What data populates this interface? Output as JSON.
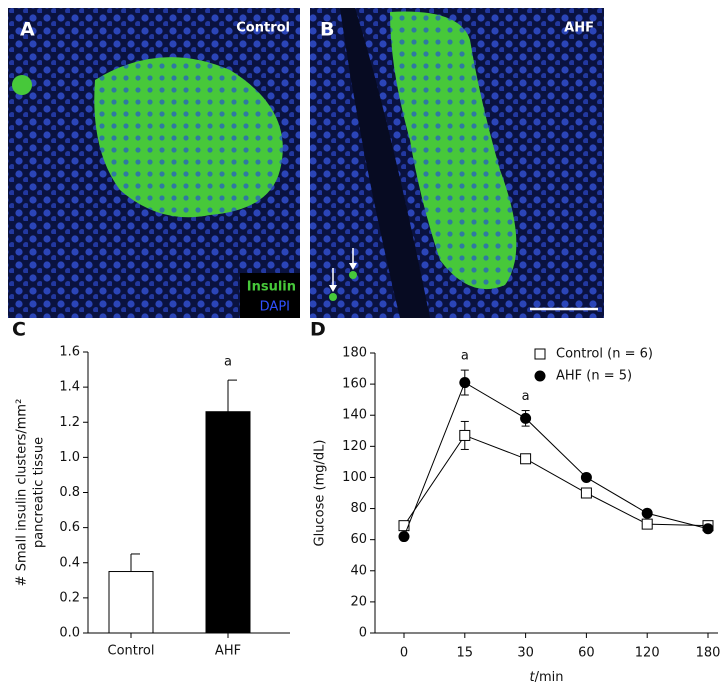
{
  "panels": [
    {
      "label": "A",
      "caption": "Control",
      "legend": [
        "Insulin",
        "DAPI"
      ]
    },
    {
      "label": "B",
      "caption": "AHF"
    }
  ],
  "chart_data": [
    {
      "type": "bar",
      "label": "C",
      "categories": [
        "Control",
        "AHF"
      ],
      "values": [
        0.35,
        1.26
      ],
      "errors": [
        0.1,
        0.18
      ],
      "colors": [
        "#ffffff",
        "#000000"
      ],
      "ylim": [
        0,
        1.6
      ],
      "yticks": [
        {
          "value": 0,
          "label": "0.0"
        },
        0.2,
        0.4,
        0.6,
        0.8,
        {
          "value": 1,
          "label": "1.0"
        },
        1.2,
        1.4,
        1.6
      ],
      "ylabel": [
        "# Small insulin clusters/mm²",
        "pancreatic tissue"
      ],
      "annotations": [
        {
          "category": 1,
          "text": "a"
        }
      ]
    },
    {
      "type": "line",
      "label": "D",
      "categories": [
        "0",
        "15",
        "30",
        "60",
        "120",
        "180"
      ],
      "xlabel": {
        "var": "t",
        "unit": "/min"
      },
      "ylabel": "Glucose (mg/dL)",
      "ylim": [
        0,
        180
      ],
      "yticks": [
        0,
        20,
        40,
        60,
        80,
        100,
        120,
        140,
        160,
        180
      ],
      "series": [
        {
          "name": "Control (n = 6)",
          "marker": "square",
          "color": "#000000",
          "values": [
            69,
            127,
            112,
            90,
            70,
            69
          ],
          "errors": [
            2,
            9,
            3,
            2,
            2,
            2
          ]
        },
        {
          "name": "AHF (n = 5)",
          "marker": "circle",
          "color": "#000000",
          "values": [
            62,
            161,
            138,
            100,
            77,
            67
          ],
          "errors": [
            2,
            8,
            5,
            2,
            2,
            2
          ]
        }
      ],
      "annotations": [
        {
          "category": 1,
          "text": "a"
        },
        {
          "category": 2,
          "text": "a"
        }
      ]
    }
  ]
}
